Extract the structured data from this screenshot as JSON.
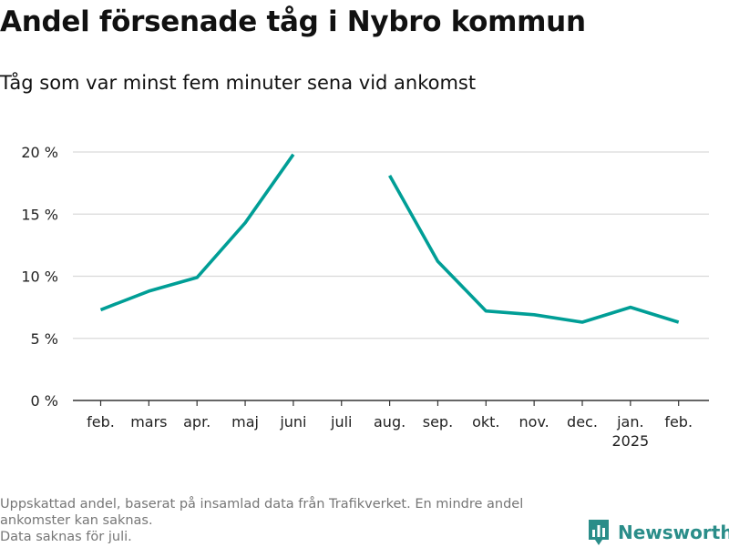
{
  "header": {
    "title": "Andel försenade tåg i Nybro kommun",
    "subtitle": "Tåg som var minst fem minuter sena vid ankomst"
  },
  "chart_data": {
    "type": "line",
    "title": "Andel försenade tåg i Nybro kommun",
    "subtitle": "Tåg som var minst fem minuter sena vid ankomst",
    "xlabel": "",
    "ylabel": "",
    "categories": [
      "feb.",
      "mars",
      "apr.",
      "maj",
      "juni",
      "juli",
      "aug.",
      "sep.",
      "okt.",
      "nov.",
      "dec.",
      "jan.",
      "feb."
    ],
    "year_label": "2025",
    "year_label_category_index": 11,
    "series": [
      {
        "values": [
          7.3,
          8.8,
          9.9,
          14.3,
          19.8,
          null,
          18.1,
          11.2,
          7.2,
          6.9,
          6.3,
          7.5,
          6.3
        ],
        "color": "#009e96"
      }
    ],
    "yticks": [
      0,
      5,
      10,
      15,
      20
    ],
    "ytick_labels": [
      "0 %",
      "5 %",
      "10 %",
      "15 %",
      "20 %"
    ],
    "ylim": [
      0,
      20
    ],
    "grid": true,
    "legend": "none",
    "gridline_color": "#d9d9d9",
    "axis_color": "#333333"
  },
  "footer": {
    "note_lines": [
      "Uppskattad andel, baserat på insamlad data från Trafikverket. En mindre andel",
      "ankomster kan saknas.",
      "Data saknas för juli."
    ]
  },
  "brand": {
    "name": "Newsworthy",
    "logo_icon": "bar-chart-badge-icon",
    "color": "#2a8d89"
  }
}
